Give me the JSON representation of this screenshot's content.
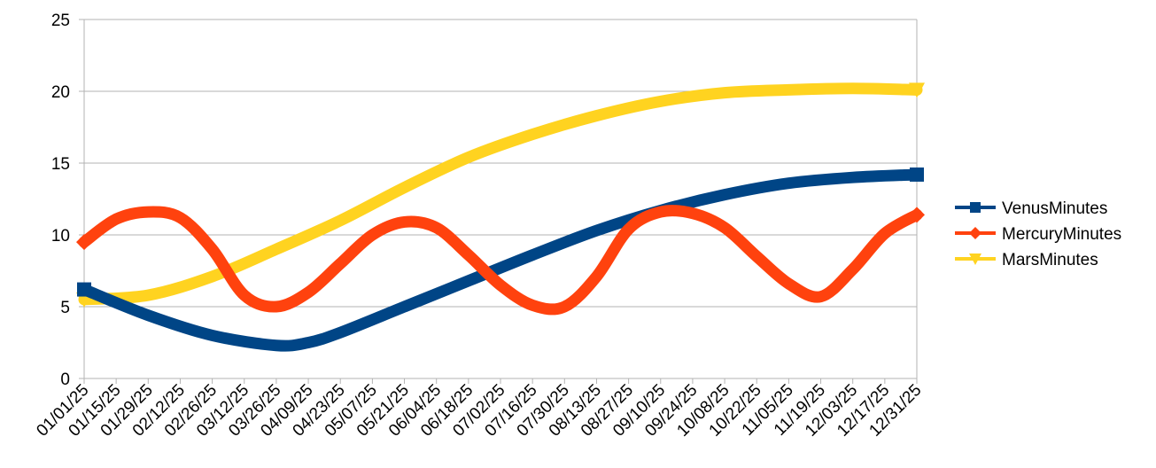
{
  "chart_data": {
    "type": "line",
    "x_type": "date",
    "x_start": "2025-01-01",
    "x_end": "2025-12-31",
    "x_tick_labels": [
      "01/01/25",
      "01/15/25",
      "01/29/25",
      "02/12/25",
      "02/26/25",
      "03/12/25",
      "03/26/25",
      "04/09/25",
      "04/23/25",
      "05/07/25",
      "05/21/25",
      "06/04/25",
      "06/18/25",
      "07/02/25",
      "07/16/25",
      "07/30/25",
      "08/13/25",
      "08/27/25",
      "09/10/25",
      "09/24/25",
      "10/08/25",
      "10/22/25",
      "11/05/25",
      "11/19/25",
      "12/03/25",
      "12/17/25",
      "12/31/25"
    ],
    "ylim": [
      0,
      25
    ],
    "y_ticks": [
      0,
      5,
      10,
      15,
      20,
      25
    ],
    "grid": true,
    "legend_position": "right",
    "series": [
      {
        "name": "VenusMinutes",
        "color": "#004586",
        "marker": "square",
        "x": [
          "01/01/25",
          "01/29/25",
          "02/26/25",
          "03/26/25",
          "04/09/25",
          "04/23/25",
          "05/21/25",
          "06/18/25",
          "07/16/25",
          "08/13/25",
          "09/10/25",
          "10/08/25",
          "11/05/25",
          "12/03/25",
          "12/31/25"
        ],
        "values": [
          6.2,
          4.4,
          3.0,
          2.3,
          2.5,
          3.2,
          5.0,
          6.8,
          8.6,
          10.3,
          11.7,
          12.8,
          13.6,
          14.0,
          14.2
        ]
      },
      {
        "name": "MercuryMinutes",
        "color": "#ff420e",
        "marker": "diamond",
        "x": [
          "01/01/25",
          "01/15/25",
          "01/29/25",
          "02/12/25",
          "02/26/25",
          "03/12/25",
          "03/26/25",
          "04/09/25",
          "04/23/25",
          "05/07/25",
          "05/21/25",
          "06/04/25",
          "06/18/25",
          "07/02/25",
          "07/16/25",
          "07/30/25",
          "08/13/25",
          "08/27/25",
          "09/10/25",
          "09/24/25",
          "10/08/25",
          "10/22/25",
          "11/05/25",
          "11/19/25",
          "12/03/25",
          "12/17/25",
          "12/31/25"
        ],
        "values": [
          9.5,
          11.1,
          11.6,
          11.2,
          9.0,
          5.8,
          5.0,
          6.0,
          8.0,
          10.0,
          10.9,
          10.5,
          8.6,
          6.5,
          5.1,
          5.0,
          7.1,
          10.4,
          11.6,
          11.5,
          10.5,
          8.5,
          6.6,
          5.7,
          7.6,
          10.1,
          11.4
        ]
      },
      {
        "name": "MarsMinutes",
        "color": "#ffd320",
        "marker": "triangle-down",
        "x": [
          "01/01/25",
          "01/29/25",
          "02/26/25",
          "03/26/25",
          "04/23/25",
          "05/21/25",
          "06/18/25",
          "07/16/25",
          "08/13/25",
          "09/10/25",
          "10/08/25",
          "11/05/25",
          "12/03/25",
          "12/31/25"
        ],
        "values": [
          5.5,
          5.8,
          7.1,
          9.0,
          11.0,
          13.3,
          15.4,
          17.0,
          18.3,
          19.3,
          19.9,
          20.1,
          20.2,
          20.1
        ]
      }
    ]
  }
}
